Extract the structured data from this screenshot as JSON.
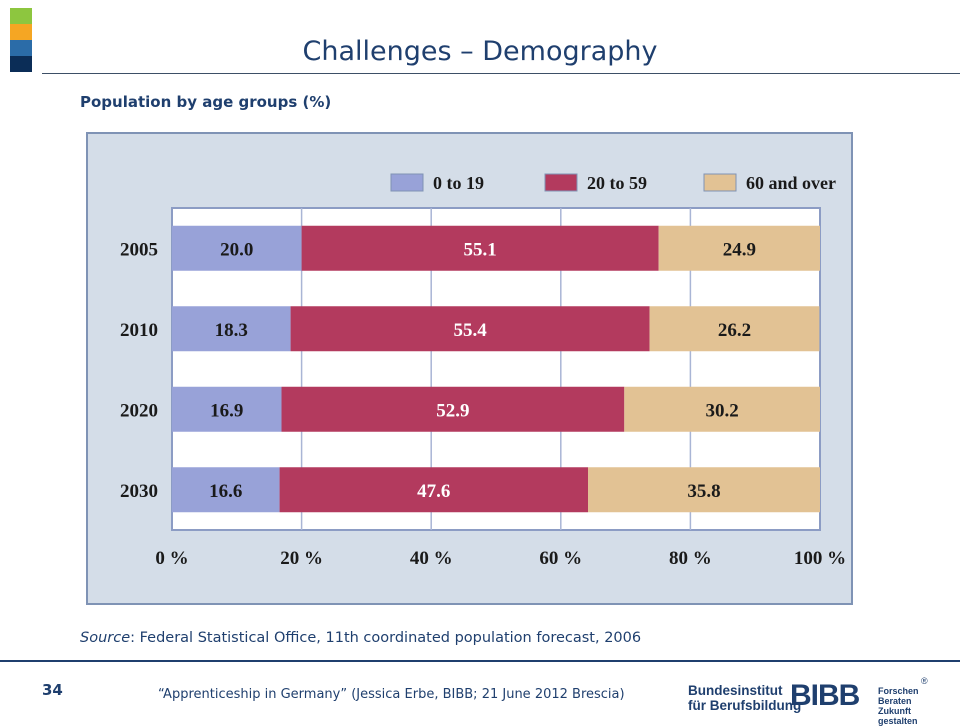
{
  "slide": {
    "title": "Challenges – Demography",
    "subtitle": "Population by age groups (%)",
    "source_label": "Source",
    "source_text": ": Federal Statistical Office, 11th coordinated population forecast, 2006",
    "page_number": "34",
    "footer": "“Apprenticeship in Germany” (Jessica Erbe, BIBB; 21 June 2012 Brescia)",
    "logo": {
      "institute_line1": "Bundesinstitut",
      "institute_line2": "für Berufsbildung",
      "mark": "BIBB",
      "tag_line1": "Forschen",
      "tag_line2": "Beraten",
      "tag_line3": "Zukunft gestalten",
      "registered": "®"
    },
    "colors": {
      "brand": "#1f3f6e",
      "accent_green": "#8dc63f",
      "accent_orange": "#f5a623",
      "accent_blue": "#2b6ca8",
      "accent_navy": "#0b2d57"
    }
  },
  "chart_data": {
    "type": "bar",
    "orientation": "horizontal",
    "stacked": true,
    "categories": [
      "2005",
      "2010",
      "2020",
      "2030"
    ],
    "series": [
      {
        "name": "0 to 19",
        "values": [
          20.0,
          18.3,
          16.9,
          16.6
        ],
        "color": "#98a2d8"
      },
      {
        "name": "20 to 59",
        "values": [
          55.1,
          55.4,
          52.9,
          47.6
        ],
        "color": "#b33a5e"
      },
      {
        "name": "60 and over",
        "values": [
          24.9,
          26.2,
          30.2,
          35.8
        ],
        "color": "#e2c294"
      }
    ],
    "xlim": [
      0,
      100
    ],
    "x_ticks": [
      "0 %",
      "20 %",
      "40 %",
      "60 %",
      "80 %",
      "100 %"
    ],
    "grid": true,
    "legend_position": "top",
    "plot_background": "#ffffff",
    "frame_background": "#d4dde8"
  }
}
